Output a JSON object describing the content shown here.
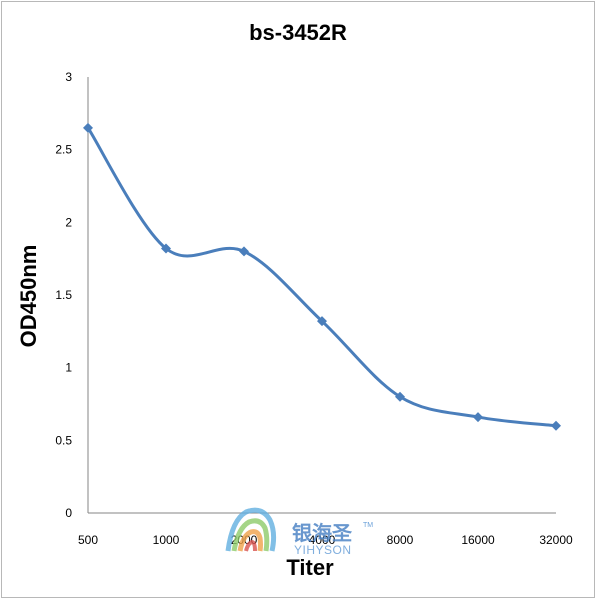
{
  "chart_data": {
    "type": "line",
    "title": "bs-3452R",
    "xlabel": "Titer",
    "ylabel": "OD450nm",
    "categories": [
      "500",
      "1000",
      "2000",
      "4000",
      "8000",
      "16000",
      "32000"
    ],
    "series": [
      {
        "values": [
          2.65,
          1.82,
          1.8,
          1.32,
          0.8,
          0.66,
          0.6
        ]
      }
    ],
    "ylim": [
      0,
      3
    ],
    "yticks": [
      "0",
      "0.5",
      "1",
      "1.5",
      "2",
      "2.5",
      "3"
    ],
    "grid": false,
    "legend": "none",
    "line_color": "#4a7ebb",
    "marker": "diamond"
  },
  "watermark": {
    "cn_text": "银海圣",
    "en_text": "YIHYSON",
    "tm": "TM"
  }
}
